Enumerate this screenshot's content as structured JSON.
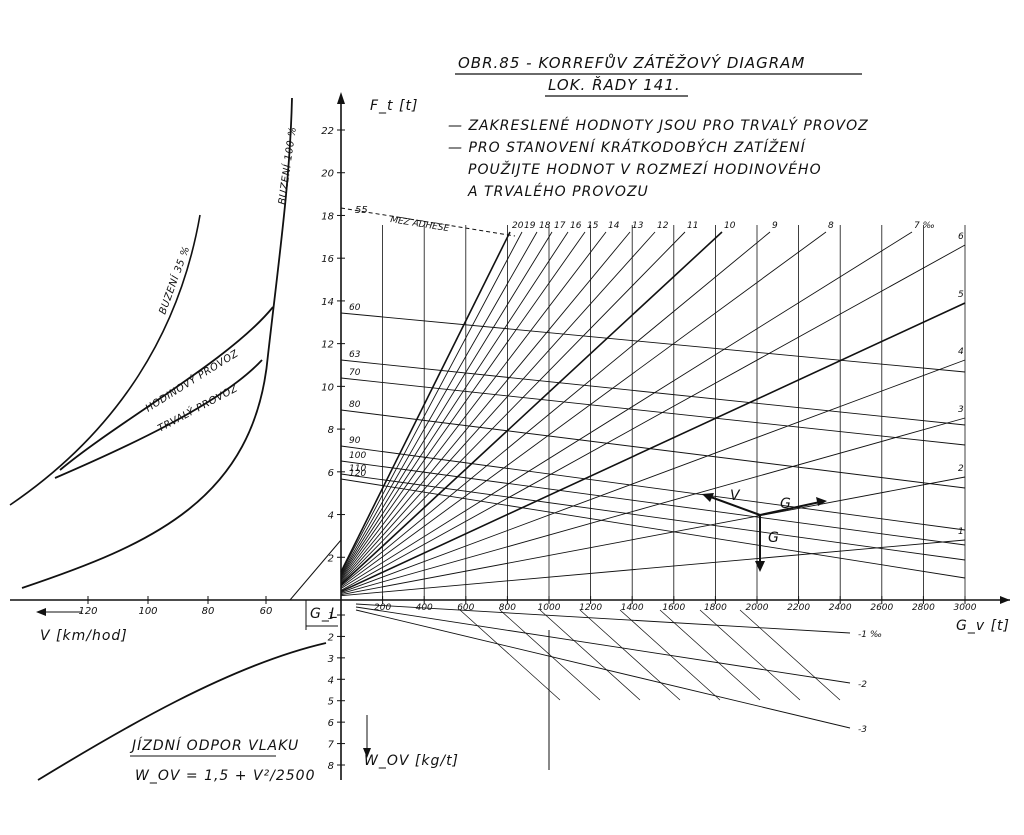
{
  "title": {
    "line1": "OBR.85 - KORREFŮV ZÁTĚŽOVÝ DIAGRAM",
    "line2": "LOK. ŘADY 141."
  },
  "notes": [
    "— ZAKRESLENÉ HODNOTY JSOU PRO TRVALÝ PROVOZ",
    "— PRO STANOVENÍ KRÁTKODOBÝCH ZATÍŽENÍ",
    "POUŽIJTE HODNOT V ROZMEZÍ HODINOVÉHO",
    "A TRVALÉHO PROVOZU"
  ],
  "axes": {
    "ft_label": "F_t [t]",
    "gv_label": "G_v [t]",
    "v_label": "V [km/hod]",
    "wov_label": "W_OV [kg/t]",
    "gl_label": "G_L",
    "ft_ticks": [
      "2",
      "4",
      "6",
      "8",
      "10",
      "12",
      "14",
      "16",
      "18",
      "20",
      "22"
    ],
    "gv_ticks": [
      "200",
      "400",
      "600",
      "800",
      "1000",
      "1200",
      "1400",
      "1600",
      "1800",
      "2000",
      "2200",
      "2400",
      "2600",
      "2800",
      "3000"
    ],
    "v_ticks": [
      "120",
      "100",
      "80",
      "60"
    ],
    "wov_ticks": [
      "1",
      "2",
      "3",
      "4",
      "5",
      "6",
      "7",
      "8"
    ]
  },
  "curves": {
    "buzeni_35": "BUZENÍ 35 %",
    "buzeni_100": "BUZENÍ 100 %",
    "hodinovy": "HODINOVÝ PROVOZ",
    "trvaly": "TRVALÝ PROVOZ",
    "adhesion": "MEZ ADHESE",
    "adhesion_value": "55",
    "resistance_label": "JÍZDNÍ ODPOR VLAKU",
    "resistance_formula": "W_OV = 1,5 + V²/2500"
  },
  "speed_lines": [
    "60",
    "63",
    "70",
    "80",
    "90",
    "100",
    "110",
    "120"
  ],
  "gradients_top": [
    "20",
    "19",
    "18",
    "17",
    "16",
    "15",
    "14",
    "13",
    "12",
    "11",
    "10",
    "9",
    "8",
    "7 ‰"
  ],
  "gradients_right": [
    "6",
    "5",
    "4",
    "3",
    "2",
    "1"
  ],
  "gradients_down": [
    "-1 ‰",
    "-2",
    "-3"
  ],
  "vectors": {
    "v": "V",
    "g_side": "G",
    "g_down": "G"
  },
  "chart_data": {
    "type": "line",
    "title": "OBR.85 - KORREFŮV ZÁTĚŽOVÝ DIAGRAM LOK. ŘADY 141.",
    "xlabel": "G_v [t]",
    "ylabel": "F_t [t]",
    "xlim": [
      0,
      3000
    ],
    "ylim": [
      0,
      22
    ],
    "gradient_lines_permille": [
      20,
      19,
      18,
      17,
      16,
      15,
      14,
      13,
      12,
      11,
      10,
      9,
      8,
      7,
      6,
      5,
      4,
      3,
      2,
      1,
      -1,
      -2,
      -3
    ],
    "speed_lines_kmh": [
      60,
      63,
      70,
      80,
      90,
      100,
      110,
      120
    ],
    "adhesion_limit_kmh": 55,
    "left_quadrant": {
      "xlabel": "V [km/hod]",
      "x_ticks": [
        120,
        100,
        80,
        60
      ],
      "series": [
        "BUZENÍ 35 %",
        "BUZENÍ 100 %",
        "HODINOVÝ PROVOZ",
        "TRVALÝ PROVOZ"
      ]
    },
    "bottom_quadrant": {
      "ylabel": "W_OV [kg/t]",
      "y_ticks": [
        1,
        2,
        3,
        4,
        5,
        6,
        7,
        8
      ],
      "series": [
        "JÍZDNÍ ODPOR VLAKU"
      ],
      "formula": "W_OV = 1,5 + V²/2500"
    }
  }
}
